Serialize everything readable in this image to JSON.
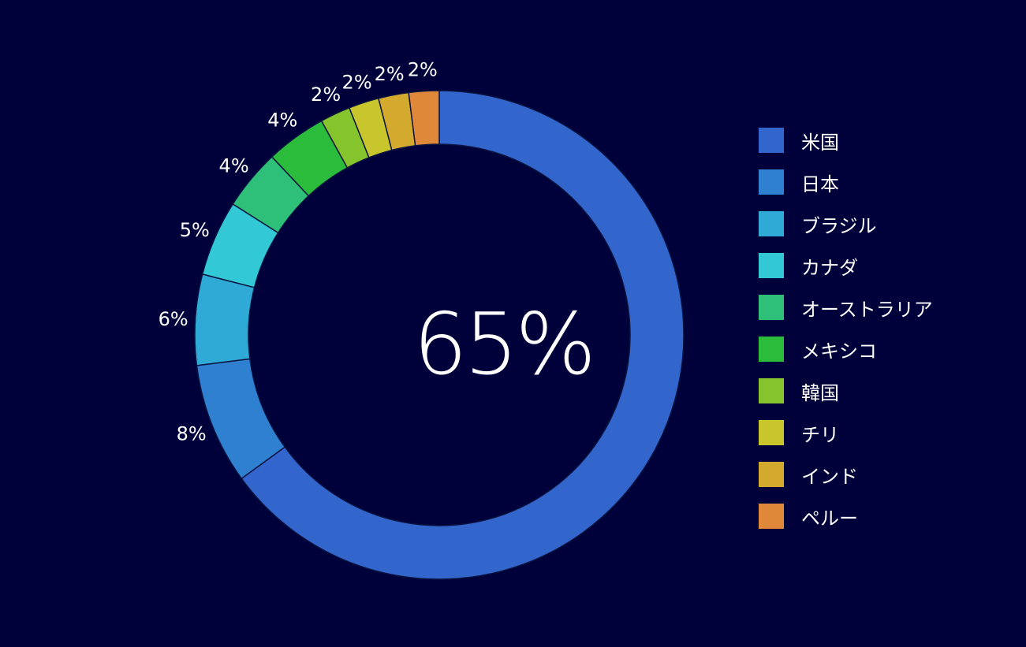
{
  "chart_data": {
    "type": "pie",
    "style": "donut",
    "center_label": "65%",
    "legend_position": "right",
    "slices": [
      {
        "name": "米国",
        "value": 65,
        "label": "",
        "color": "#3366cc"
      },
      {
        "name": "日本",
        "value": 8,
        "label": "8%",
        "color": "#2f80d0"
      },
      {
        "name": "ブラジル",
        "value": 6,
        "label": "6%",
        "color": "#2fa9d6"
      },
      {
        "name": "カナダ",
        "value": 5,
        "label": "5%",
        "color": "#33c8d6"
      },
      {
        "name": "オーストラリア",
        "value": 4,
        "label": "4%",
        "color": "#2ebf78"
      },
      {
        "name": "メキシコ",
        "value": 4,
        "label": "4%",
        "color": "#2cbc3c"
      },
      {
        "name": "韓国",
        "value": 2,
        "label": "2%",
        "color": "#85c42c"
      },
      {
        "name": "チリ",
        "value": 2,
        "label": "2%",
        "color": "#c8c62c"
      },
      {
        "name": "インド",
        "value": 2,
        "label": "2%",
        "color": "#d4aa2e"
      },
      {
        "name": "ペルー",
        "value": 2,
        "label": "2%",
        "color": "#e0883a"
      }
    ]
  }
}
